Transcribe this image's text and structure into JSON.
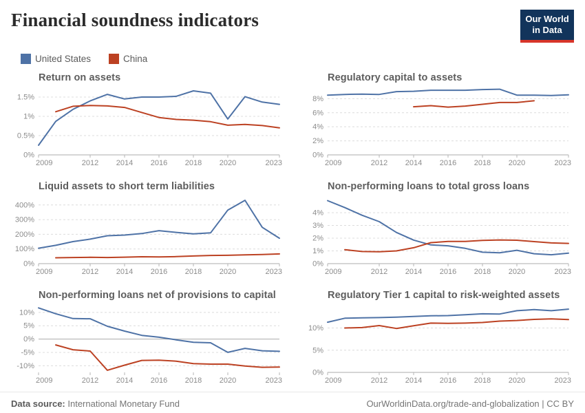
{
  "header": {
    "title": "Financial soundness indicators",
    "logo_line1": "Our World",
    "logo_line2": "in Data"
  },
  "legend": [
    {
      "label": "United States",
      "color": "#4E72A6"
    },
    {
      "label": "China",
      "color": "#BC4122"
    }
  ],
  "footer": {
    "datasource_label": "Data source:",
    "datasource_value": " International Monetary Fund",
    "citation": "OurWorldinData.org/trade-and-globalization | CC BY"
  },
  "colors": {
    "grid": "#dcdcdc",
    "zero_line": "#ababab",
    "axis_tick": "#b5b5b5"
  },
  "chart_data": [
    {
      "type": "line",
      "title": "Return on assets",
      "ylim": [
        0,
        1.75
      ],
      "yticks": [
        0,
        0.5,
        1,
        1.5
      ],
      "ytick_labels": [
        "0%",
        "0.5%",
        "1%",
        "1.5%"
      ],
      "xlim": [
        2009,
        2023
      ],
      "xticks": [
        2009,
        2012,
        2014,
        2016,
        2018,
        2020,
        2023
      ],
      "series": [
        {
          "name": "United States",
          "color": "#4E72A6",
          "x": [
            2009,
            2010,
            2011,
            2012,
            2013,
            2014,
            2015,
            2016,
            2017,
            2018,
            2019,
            2020,
            2021,
            2022,
            2023
          ],
          "values": [
            0.25,
            0.87,
            1.18,
            1.4,
            1.57,
            1.45,
            1.5,
            1.5,
            1.52,
            1.66,
            1.6,
            0.93,
            1.51,
            1.37,
            1.31
          ]
        },
        {
          "name": "China",
          "color": "#BC4122",
          "x": [
            2010,
            2011,
            2012,
            2013,
            2014,
            2015,
            2016,
            2017,
            2018,
            2019,
            2020,
            2021,
            2022,
            2023
          ],
          "values": [
            1.12,
            1.26,
            1.28,
            1.27,
            1.23,
            1.1,
            0.97,
            0.92,
            0.9,
            0.86,
            0.77,
            0.79,
            0.76,
            0.7
          ]
        }
      ]
    },
    {
      "type": "line",
      "title": "Regulatory capital to assets",
      "ylim": [
        0,
        9.6
      ],
      "yticks": [
        0,
        2,
        4,
        6,
        8
      ],
      "ytick_labels": [
        "0%",
        "2%",
        "4%",
        "6%",
        "8%"
      ],
      "xlim": [
        2009,
        2023
      ],
      "xticks": [
        2009,
        2012,
        2014,
        2016,
        2018,
        2020,
        2023
      ],
      "series": [
        {
          "name": "United States",
          "color": "#4E72A6",
          "x": [
            2009,
            2010,
            2011,
            2012,
            2013,
            2014,
            2015,
            2016,
            2017,
            2018,
            2019,
            2020,
            2021,
            2022,
            2023
          ],
          "values": [
            8.5,
            8.6,
            8.65,
            8.6,
            9.0,
            9.05,
            9.2,
            9.2,
            9.2,
            9.3,
            9.35,
            8.5,
            8.5,
            8.45,
            8.55
          ]
        },
        {
          "name": "China",
          "color": "#BC4122",
          "x": [
            2014,
            2015,
            2016,
            2017,
            2018,
            2019,
            2020,
            2021
          ],
          "values": [
            6.85,
            7.0,
            6.8,
            6.95,
            7.2,
            7.45,
            7.45,
            7.7
          ]
        }
      ]
    },
    {
      "type": "line",
      "title": "Liquid assets to short term liabilities",
      "ylim": [
        0,
        460
      ],
      "yticks": [
        0,
        100,
        200,
        300,
        400
      ],
      "ytick_labels": [
        "0%",
        "100%",
        "200%",
        "300%",
        "400%"
      ],
      "xlim": [
        2009,
        2023
      ],
      "xticks": [
        2009,
        2012,
        2014,
        2016,
        2018,
        2020,
        2023
      ],
      "series": [
        {
          "name": "United States",
          "color": "#4E72A6",
          "x": [
            2009,
            2010,
            2011,
            2012,
            2013,
            2014,
            2015,
            2016,
            2017,
            2018,
            2019,
            2020,
            2021,
            2022,
            2023
          ],
          "values": [
            105,
            125,
            150,
            167,
            190,
            195,
            205,
            225,
            213,
            203,
            210,
            365,
            432,
            248,
            173
          ]
        },
        {
          "name": "China",
          "color": "#BC4122",
          "x": [
            2010,
            2011,
            2012,
            2013,
            2014,
            2015,
            2016,
            2017,
            2018,
            2019,
            2020,
            2021,
            2022,
            2023
          ],
          "values": [
            40,
            42,
            43,
            42,
            44,
            47,
            46,
            48,
            52,
            56,
            57,
            60,
            62,
            66
          ]
        }
      ]
    },
    {
      "type": "line",
      "title": "Non-performing loans to total gross loans",
      "ylim": [
        0,
        5.3
      ],
      "yticks": [
        0,
        1,
        2,
        3,
        4
      ],
      "ytick_labels": [
        "0%",
        "1%",
        "2%",
        "3%",
        "4%"
      ],
      "xlim": [
        2009,
        2023
      ],
      "xticks": [
        2009,
        2012,
        2014,
        2016,
        2018,
        2020,
        2023
      ],
      "series": [
        {
          "name": "United States",
          "color": "#4E72A6",
          "x": [
            2009,
            2010,
            2011,
            2012,
            2013,
            2014,
            2015,
            2016,
            2017,
            2018,
            2019,
            2020,
            2021,
            2022,
            2023
          ],
          "values": [
            4.95,
            4.4,
            3.8,
            3.3,
            2.45,
            1.85,
            1.47,
            1.4,
            1.2,
            0.9,
            0.85,
            1.05,
            0.78,
            0.7,
            0.82
          ]
        },
        {
          "name": "China",
          "color": "#BC4122",
          "x": [
            2010,
            2011,
            2012,
            2013,
            2014,
            2015,
            2016,
            2017,
            2018,
            2019,
            2020,
            2021,
            2022,
            2023
          ],
          "values": [
            1.1,
            0.95,
            0.93,
            1.0,
            1.25,
            1.65,
            1.74,
            1.74,
            1.83,
            1.86,
            1.84,
            1.73,
            1.63,
            1.59
          ]
        }
      ]
    },
    {
      "type": "line",
      "title": "Non-performing loans net of provisions to capital",
      "ylim": [
        -12.5,
        12.8
      ],
      "yticks": [
        -10,
        -5,
        0,
        5,
        10
      ],
      "ytick_labels": [
        "-10%",
        "-5%",
        "0%",
        "5%",
        "10%"
      ],
      "xlim": [
        2009,
        2023
      ],
      "xticks": [
        2009,
        2012,
        2014,
        2016,
        2018,
        2020,
        2023
      ],
      "series": [
        {
          "name": "United States",
          "color": "#4E72A6",
          "x": [
            2009,
            2010,
            2011,
            2012,
            2013,
            2014,
            2015,
            2016,
            2017,
            2018,
            2019,
            2020,
            2021,
            2022,
            2023
          ],
          "values": [
            11.7,
            9.5,
            7.7,
            7.6,
            4.8,
            3.0,
            1.4,
            0.7,
            -0.3,
            -1.2,
            -1.4,
            -5.0,
            -3.5,
            -4.4,
            -4.6
          ]
        },
        {
          "name": "China",
          "color": "#BC4122",
          "x": [
            2010,
            2011,
            2012,
            2013,
            2014,
            2015,
            2016,
            2017,
            2018,
            2019,
            2020,
            2021,
            2022,
            2023
          ],
          "values": [
            -2.2,
            -4.0,
            -4.5,
            -11.7,
            -9.8,
            -8.0,
            -7.9,
            -8.3,
            -9.2,
            -9.4,
            -9.4,
            -10.1,
            -10.6,
            -10.5
          ]
        }
      ]
    },
    {
      "type": "line",
      "title": "Regulatory Tier 1 capital to risk-weighted assets",
      "ylim": [
        0,
        15.2
      ],
      "yticks": [
        0,
        5,
        10
      ],
      "ytick_labels": [
        "0%",
        "5%",
        "10%"
      ],
      "xlim": [
        2009,
        2023
      ],
      "xticks": [
        2009,
        2012,
        2014,
        2016,
        2018,
        2020,
        2023
      ],
      "series": [
        {
          "name": "United States",
          "color": "#4E72A6",
          "x": [
            2009,
            2010,
            2011,
            2012,
            2013,
            2014,
            2015,
            2016,
            2017,
            2018,
            2019,
            2020,
            2021,
            2022,
            2023
          ],
          "values": [
            11.3,
            12.2,
            12.3,
            12.35,
            12.45,
            12.6,
            12.75,
            12.8,
            13.0,
            13.2,
            13.15,
            13.9,
            14.15,
            13.9,
            14.25
          ]
        },
        {
          "name": "China",
          "color": "#BC4122",
          "x": [
            2010,
            2011,
            2012,
            2013,
            2014,
            2015,
            2016,
            2017,
            2018,
            2019,
            2020,
            2021,
            2022,
            2023
          ],
          "values": [
            10.0,
            10.1,
            10.55,
            9.9,
            10.5,
            11.1,
            11.05,
            11.1,
            11.25,
            11.55,
            11.7,
            11.95,
            12.05,
            11.9
          ]
        }
      ]
    }
  ]
}
